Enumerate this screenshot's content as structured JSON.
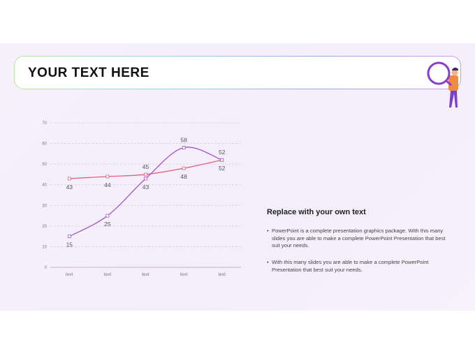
{
  "slide": {
    "title": "YOUR TEXT HERE",
    "heading": "Replace with your own text",
    "bullets": [
      "PowerPoint is a complete presentation graphics package. With this many slides you are able to make a complete PowerPoint Presentation that best suit your needs.",
      "With this many slides you are able to make a complete PowerPoint Presentation that best suit your needs."
    ]
  },
  "chart_data": {
    "type": "line",
    "smooth": true,
    "grid": true,
    "categories": [
      "text",
      "text",
      "text",
      "text",
      "text"
    ],
    "series": [
      {
        "color": "#e0607e",
        "values": [
          43,
          44,
          45,
          48,
          52
        ]
      },
      {
        "color": "#a455c8",
        "values": [
          15,
          25,
          43,
          58,
          52
        ]
      }
    ],
    "ylim": [
      0,
      70
    ],
    "yticks": [
      0,
      10,
      20,
      30,
      40,
      50,
      60,
      70
    ]
  }
}
